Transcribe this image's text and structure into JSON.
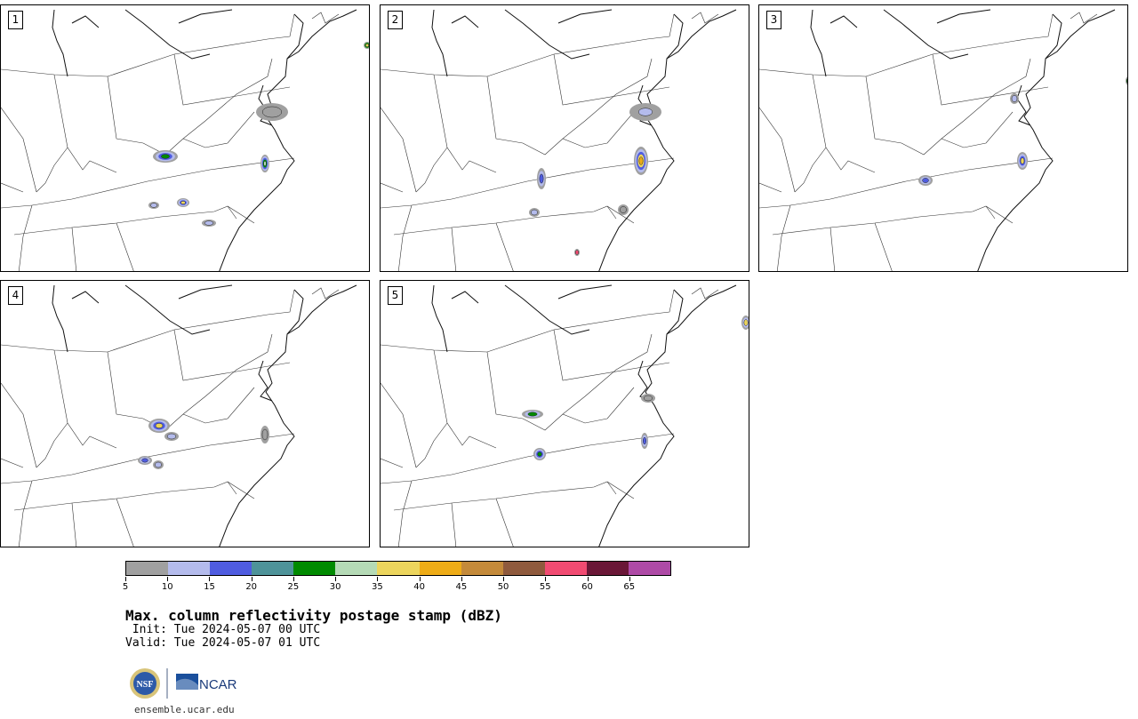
{
  "panels": [
    {
      "label": "1"
    },
    {
      "label": "2"
    },
    {
      "label": "3"
    },
    {
      "label": "4"
    },
    {
      "label": "5"
    }
  ],
  "colorbar": {
    "colors": [
      "#a0a0a0",
      "#b4bbec",
      "#4f5ce0",
      "#4e9399",
      "#008a00",
      "#b5dab6",
      "#ecd55d",
      "#eeac17",
      "#c48a3a",
      "#8f5a3d",
      "#f14b72",
      "#6a1737",
      "#ae4aa6"
    ],
    "tick_labels": [
      "5",
      "10",
      "15",
      "20",
      "25",
      "30",
      "35",
      "40",
      "45",
      "50",
      "55",
      "60",
      "65"
    ]
  },
  "title": "Max. column reflectivity postage stamp (dBZ)",
  "init_text": " Init: Tue 2024-05-07 00 UTC",
  "valid_text": "Valid: Tue 2024-05-07 01 UTC",
  "logos": {
    "nsf": "NSF",
    "ncar": "NCAR"
  },
  "footer": "ensemble.ucar.edu"
}
